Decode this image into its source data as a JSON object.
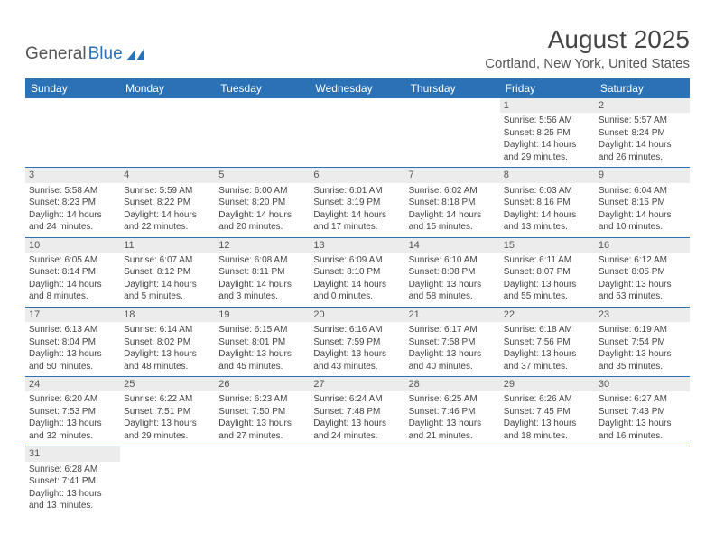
{
  "brand": {
    "part1": "General",
    "part2": "Blue"
  },
  "title": "August 2025",
  "location": "Cortland, New York, United States",
  "colors": {
    "header_bg": "#2a72b5",
    "header_text": "#ffffff",
    "daynum_bg": "#ececec",
    "border": "#2a72b5",
    "text": "#4a4a4a",
    "logo_blue": "#2a72b5"
  },
  "fonts": {
    "title_pt": 28,
    "location_pt": 15,
    "dayhead_pt": 12,
    "daynum_pt": 11,
    "body_pt": 10
  },
  "day_headers": [
    "Sunday",
    "Monday",
    "Tuesday",
    "Wednesday",
    "Thursday",
    "Friday",
    "Saturday"
  ],
  "weeks": [
    [
      null,
      null,
      null,
      null,
      null,
      {
        "n": "1",
        "sunrise": "Sunrise: 5:56 AM",
        "sunset": "Sunset: 8:25 PM",
        "daylight1": "Daylight: 14 hours",
        "daylight2": "and 29 minutes."
      },
      {
        "n": "2",
        "sunrise": "Sunrise: 5:57 AM",
        "sunset": "Sunset: 8:24 PM",
        "daylight1": "Daylight: 14 hours",
        "daylight2": "and 26 minutes."
      }
    ],
    [
      {
        "n": "3",
        "sunrise": "Sunrise: 5:58 AM",
        "sunset": "Sunset: 8:23 PM",
        "daylight1": "Daylight: 14 hours",
        "daylight2": "and 24 minutes."
      },
      {
        "n": "4",
        "sunrise": "Sunrise: 5:59 AM",
        "sunset": "Sunset: 8:22 PM",
        "daylight1": "Daylight: 14 hours",
        "daylight2": "and 22 minutes."
      },
      {
        "n": "5",
        "sunrise": "Sunrise: 6:00 AM",
        "sunset": "Sunset: 8:20 PM",
        "daylight1": "Daylight: 14 hours",
        "daylight2": "and 20 minutes."
      },
      {
        "n": "6",
        "sunrise": "Sunrise: 6:01 AM",
        "sunset": "Sunset: 8:19 PM",
        "daylight1": "Daylight: 14 hours",
        "daylight2": "and 17 minutes."
      },
      {
        "n": "7",
        "sunrise": "Sunrise: 6:02 AM",
        "sunset": "Sunset: 8:18 PM",
        "daylight1": "Daylight: 14 hours",
        "daylight2": "and 15 minutes."
      },
      {
        "n": "8",
        "sunrise": "Sunrise: 6:03 AM",
        "sunset": "Sunset: 8:16 PM",
        "daylight1": "Daylight: 14 hours",
        "daylight2": "and 13 minutes."
      },
      {
        "n": "9",
        "sunrise": "Sunrise: 6:04 AM",
        "sunset": "Sunset: 8:15 PM",
        "daylight1": "Daylight: 14 hours",
        "daylight2": "and 10 minutes."
      }
    ],
    [
      {
        "n": "10",
        "sunrise": "Sunrise: 6:05 AM",
        "sunset": "Sunset: 8:14 PM",
        "daylight1": "Daylight: 14 hours",
        "daylight2": "and 8 minutes."
      },
      {
        "n": "11",
        "sunrise": "Sunrise: 6:07 AM",
        "sunset": "Sunset: 8:12 PM",
        "daylight1": "Daylight: 14 hours",
        "daylight2": "and 5 minutes."
      },
      {
        "n": "12",
        "sunrise": "Sunrise: 6:08 AM",
        "sunset": "Sunset: 8:11 PM",
        "daylight1": "Daylight: 14 hours",
        "daylight2": "and 3 minutes."
      },
      {
        "n": "13",
        "sunrise": "Sunrise: 6:09 AM",
        "sunset": "Sunset: 8:10 PM",
        "daylight1": "Daylight: 14 hours",
        "daylight2": "and 0 minutes."
      },
      {
        "n": "14",
        "sunrise": "Sunrise: 6:10 AM",
        "sunset": "Sunset: 8:08 PM",
        "daylight1": "Daylight: 13 hours",
        "daylight2": "and 58 minutes."
      },
      {
        "n": "15",
        "sunrise": "Sunrise: 6:11 AM",
        "sunset": "Sunset: 8:07 PM",
        "daylight1": "Daylight: 13 hours",
        "daylight2": "and 55 minutes."
      },
      {
        "n": "16",
        "sunrise": "Sunrise: 6:12 AM",
        "sunset": "Sunset: 8:05 PM",
        "daylight1": "Daylight: 13 hours",
        "daylight2": "and 53 minutes."
      }
    ],
    [
      {
        "n": "17",
        "sunrise": "Sunrise: 6:13 AM",
        "sunset": "Sunset: 8:04 PM",
        "daylight1": "Daylight: 13 hours",
        "daylight2": "and 50 minutes."
      },
      {
        "n": "18",
        "sunrise": "Sunrise: 6:14 AM",
        "sunset": "Sunset: 8:02 PM",
        "daylight1": "Daylight: 13 hours",
        "daylight2": "and 48 minutes."
      },
      {
        "n": "19",
        "sunrise": "Sunrise: 6:15 AM",
        "sunset": "Sunset: 8:01 PM",
        "daylight1": "Daylight: 13 hours",
        "daylight2": "and 45 minutes."
      },
      {
        "n": "20",
        "sunrise": "Sunrise: 6:16 AM",
        "sunset": "Sunset: 7:59 PM",
        "daylight1": "Daylight: 13 hours",
        "daylight2": "and 43 minutes."
      },
      {
        "n": "21",
        "sunrise": "Sunrise: 6:17 AM",
        "sunset": "Sunset: 7:58 PM",
        "daylight1": "Daylight: 13 hours",
        "daylight2": "and 40 minutes."
      },
      {
        "n": "22",
        "sunrise": "Sunrise: 6:18 AM",
        "sunset": "Sunset: 7:56 PM",
        "daylight1": "Daylight: 13 hours",
        "daylight2": "and 37 minutes."
      },
      {
        "n": "23",
        "sunrise": "Sunrise: 6:19 AM",
        "sunset": "Sunset: 7:54 PM",
        "daylight1": "Daylight: 13 hours",
        "daylight2": "and 35 minutes."
      }
    ],
    [
      {
        "n": "24",
        "sunrise": "Sunrise: 6:20 AM",
        "sunset": "Sunset: 7:53 PM",
        "daylight1": "Daylight: 13 hours",
        "daylight2": "and 32 minutes."
      },
      {
        "n": "25",
        "sunrise": "Sunrise: 6:22 AM",
        "sunset": "Sunset: 7:51 PM",
        "daylight1": "Daylight: 13 hours",
        "daylight2": "and 29 minutes."
      },
      {
        "n": "26",
        "sunrise": "Sunrise: 6:23 AM",
        "sunset": "Sunset: 7:50 PM",
        "daylight1": "Daylight: 13 hours",
        "daylight2": "and 27 minutes."
      },
      {
        "n": "27",
        "sunrise": "Sunrise: 6:24 AM",
        "sunset": "Sunset: 7:48 PM",
        "daylight1": "Daylight: 13 hours",
        "daylight2": "and 24 minutes."
      },
      {
        "n": "28",
        "sunrise": "Sunrise: 6:25 AM",
        "sunset": "Sunset: 7:46 PM",
        "daylight1": "Daylight: 13 hours",
        "daylight2": "and 21 minutes."
      },
      {
        "n": "29",
        "sunrise": "Sunrise: 6:26 AM",
        "sunset": "Sunset: 7:45 PM",
        "daylight1": "Daylight: 13 hours",
        "daylight2": "and 18 minutes."
      },
      {
        "n": "30",
        "sunrise": "Sunrise: 6:27 AM",
        "sunset": "Sunset: 7:43 PM",
        "daylight1": "Daylight: 13 hours",
        "daylight2": "and 16 minutes."
      }
    ],
    [
      {
        "n": "31",
        "sunrise": "Sunrise: 6:28 AM",
        "sunset": "Sunset: 7:41 PM",
        "daylight1": "Daylight: 13 hours",
        "daylight2": "and 13 minutes."
      },
      null,
      null,
      null,
      null,
      null,
      null
    ]
  ]
}
